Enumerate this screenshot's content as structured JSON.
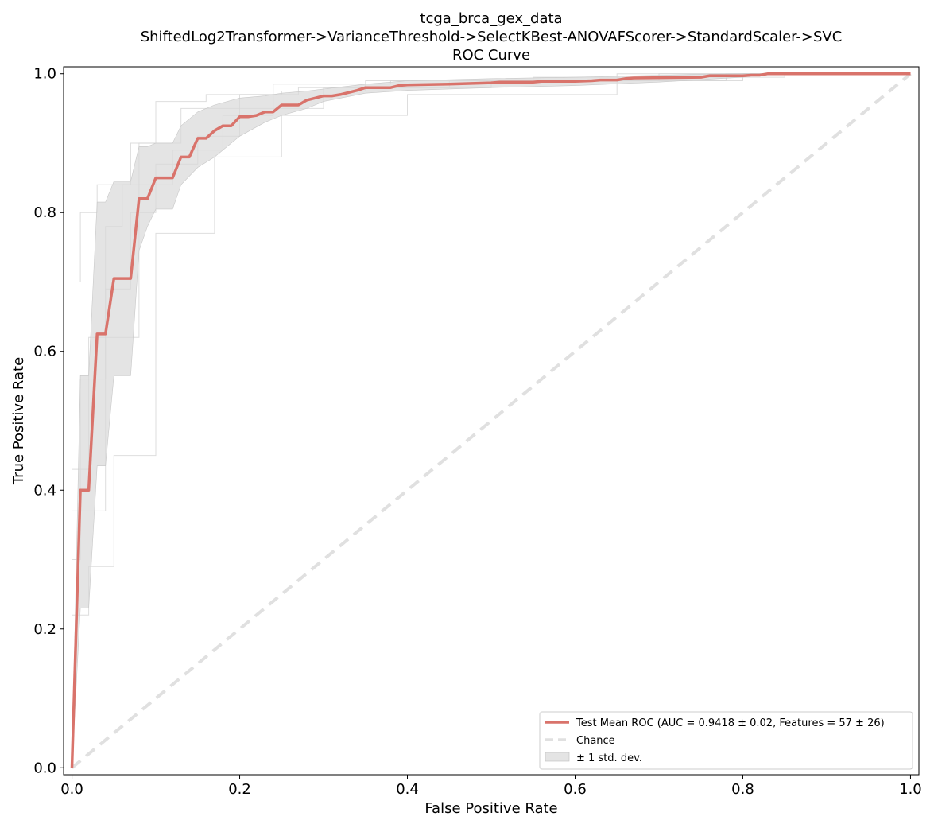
{
  "chart_data": {
    "type": "line",
    "title_lines": [
      "tcga_brca_gex_data",
      "ShiftedLog2Transformer->VarianceThreshold->SelectKBest-ANOVAFScorer->StandardScaler->SVC",
      "ROC Curve"
    ],
    "xlabel": "False Positive Rate",
    "ylabel": "True Positive Rate",
    "xlim": [
      -0.01,
      1.01
    ],
    "ylim": [
      -0.01,
      1.01
    ],
    "xticks": [
      0.0,
      0.2,
      0.4,
      0.6,
      0.8,
      1.0
    ],
    "xtick_labels": [
      "0.0",
      "0.2",
      "0.4",
      "0.6",
      "0.8",
      "1.0"
    ],
    "yticks": [
      0.0,
      0.2,
      0.4,
      0.6,
      0.8,
      1.0
    ],
    "ytick_labels": [
      "0.0",
      "0.2",
      "0.4",
      "0.6",
      "0.8",
      "1.0"
    ],
    "grid": false,
    "legend_position": "bottom-right",
    "colors": {
      "mean": "#d9736b",
      "chance": "#e0e0e0",
      "band": "#d9d9d9",
      "folds": "#d4d4d4"
    },
    "series": [
      {
        "name": "Test Mean ROC (AUC = 0.9418 ± 0.02, Features = 57 ± 26)",
        "role": "mean",
        "x": [
          0.0,
          0.01,
          0.02,
          0.03,
          0.04,
          0.05,
          0.06,
          0.07,
          0.08,
          0.09,
          0.1,
          0.11,
          0.12,
          0.13,
          0.14,
          0.15,
          0.16,
          0.17,
          0.18,
          0.19,
          0.2,
          0.21,
          0.22,
          0.23,
          0.24,
          0.25,
          0.26,
          0.27,
          0.28,
          0.29,
          0.3,
          0.31,
          0.32,
          0.33,
          0.34,
          0.35,
          0.38,
          0.39,
          0.4,
          0.45,
          0.5,
          0.51,
          0.55,
          0.56,
          0.6,
          0.62,
          0.63,
          0.65,
          0.66,
          0.67,
          0.75,
          0.76,
          0.8,
          0.81,
          0.82,
          0.83,
          1.0
        ],
        "y": [
          0.0,
          0.4,
          0.4,
          0.625,
          0.625,
          0.705,
          0.705,
          0.705,
          0.82,
          0.82,
          0.85,
          0.85,
          0.85,
          0.88,
          0.88,
          0.907,
          0.907,
          0.918,
          0.925,
          0.925,
          0.938,
          0.938,
          0.94,
          0.945,
          0.945,
          0.955,
          0.955,
          0.955,
          0.962,
          0.965,
          0.968,
          0.968,
          0.97,
          0.973,
          0.976,
          0.98,
          0.98,
          0.983,
          0.984,
          0.985,
          0.987,
          0.988,
          0.988,
          0.989,
          0.989,
          0.99,
          0.991,
          0.991,
          0.993,
          0.994,
          0.995,
          0.997,
          0.997,
          0.998,
          0.998,
          1.0,
          1.0
        ]
      },
      {
        "name": "Chance",
        "role": "chance",
        "x": [
          0.0,
          1.0
        ],
        "y": [
          0.0,
          1.0
        ]
      }
    ],
    "std_band": {
      "name": "± 1 std. dev.",
      "x": [
        0.0,
        0.01,
        0.02,
        0.03,
        0.04,
        0.05,
        0.07,
        0.08,
        0.09,
        0.1,
        0.12,
        0.13,
        0.15,
        0.17,
        0.2,
        0.23,
        0.25,
        0.28,
        0.3,
        0.35,
        0.4,
        0.5,
        0.6,
        0.7,
        0.8,
        0.83,
        1.0
      ],
      "lower": [
        0.0,
        0.23,
        0.23,
        0.435,
        0.435,
        0.565,
        0.565,
        0.745,
        0.78,
        0.805,
        0.805,
        0.84,
        0.865,
        0.88,
        0.91,
        0.93,
        0.94,
        0.95,
        0.96,
        0.972,
        0.976,
        0.98,
        0.983,
        0.988,
        0.995,
        1.0,
        1.0
      ],
      "upper": [
        0.0,
        0.565,
        0.565,
        0.815,
        0.815,
        0.845,
        0.845,
        0.895,
        0.895,
        0.9,
        0.9,
        0.925,
        0.945,
        0.955,
        0.965,
        0.968,
        0.972,
        0.975,
        0.978,
        0.985,
        0.99,
        0.993,
        0.995,
        0.998,
        1.0,
        1.0,
        1.0
      ]
    },
    "fold_curves": [
      {
        "x": [
          0.0,
          0.0,
          0.01,
          0.01,
          0.03,
          0.03,
          0.07,
          0.07,
          0.1,
          0.1,
          0.16,
          0.16,
          0.27,
          0.27,
          0.45,
          0.45,
          0.78,
          0.78,
          1.0
        ],
        "y": [
          0.0,
          0.7,
          0.7,
          0.8,
          0.8,
          0.84,
          0.84,
          0.9,
          0.9,
          0.96,
          0.96,
          0.97,
          0.97,
          0.98,
          0.98,
          0.99,
          0.99,
          1.0,
          1.0
        ]
      },
      {
        "x": [
          0.0,
          0.0,
          0.02,
          0.02,
          0.05,
          0.05,
          0.1,
          0.1,
          0.17,
          0.17,
          0.25,
          0.25,
          0.4,
          0.4,
          0.65,
          0.65,
          1.0
        ],
        "y": [
          0.0,
          0.22,
          0.22,
          0.29,
          0.29,
          0.45,
          0.45,
          0.77,
          0.77,
          0.88,
          0.88,
          0.94,
          0.94,
          0.97,
          0.97,
          1.0,
          1.0
        ]
      },
      {
        "x": [
          0.0,
          0.0,
          0.04,
          0.04,
          0.07,
          0.07,
          0.1,
          0.1,
          0.15,
          0.15,
          0.2,
          0.2,
          0.3,
          0.3,
          0.5,
          0.5,
          0.8,
          0.8,
          1.0
        ],
        "y": [
          0.0,
          0.37,
          0.37,
          0.69,
          0.69,
          0.8,
          0.8,
          0.87,
          0.87,
          0.91,
          0.91,
          0.95,
          0.95,
          0.98,
          0.98,
          0.99,
          0.99,
          1.0,
          1.0
        ]
      },
      {
        "x": [
          0.0,
          0.0,
          0.02,
          0.02,
          0.08,
          0.08,
          0.13,
          0.13,
          0.2,
          0.2,
          0.25,
          0.25,
          0.35,
          0.35,
          0.55,
          0.55,
          0.85,
          0.85,
          1.0
        ],
        "y": [
          0.0,
          0.43,
          0.43,
          0.62,
          0.62,
          0.9,
          0.9,
          0.95,
          0.95,
          0.97,
          0.97,
          0.975,
          0.975,
          0.99,
          0.99,
          0.995,
          0.995,
          1.0,
          1.0
        ]
      },
      {
        "x": [
          0.0,
          0.0,
          0.01,
          0.01,
          0.04,
          0.04,
          0.06,
          0.06,
          0.12,
          0.12,
          0.18,
          0.18,
          0.24,
          0.24,
          0.38,
          0.38,
          0.7,
          0.7,
          1.0
        ],
        "y": [
          0.0,
          0.3,
          0.3,
          0.56,
          0.56,
          0.78,
          0.78,
          0.84,
          0.84,
          0.89,
          0.89,
          0.94,
          0.94,
          0.985,
          0.985,
          0.99,
          0.99,
          1.0,
          1.0
        ]
      }
    ]
  }
}
